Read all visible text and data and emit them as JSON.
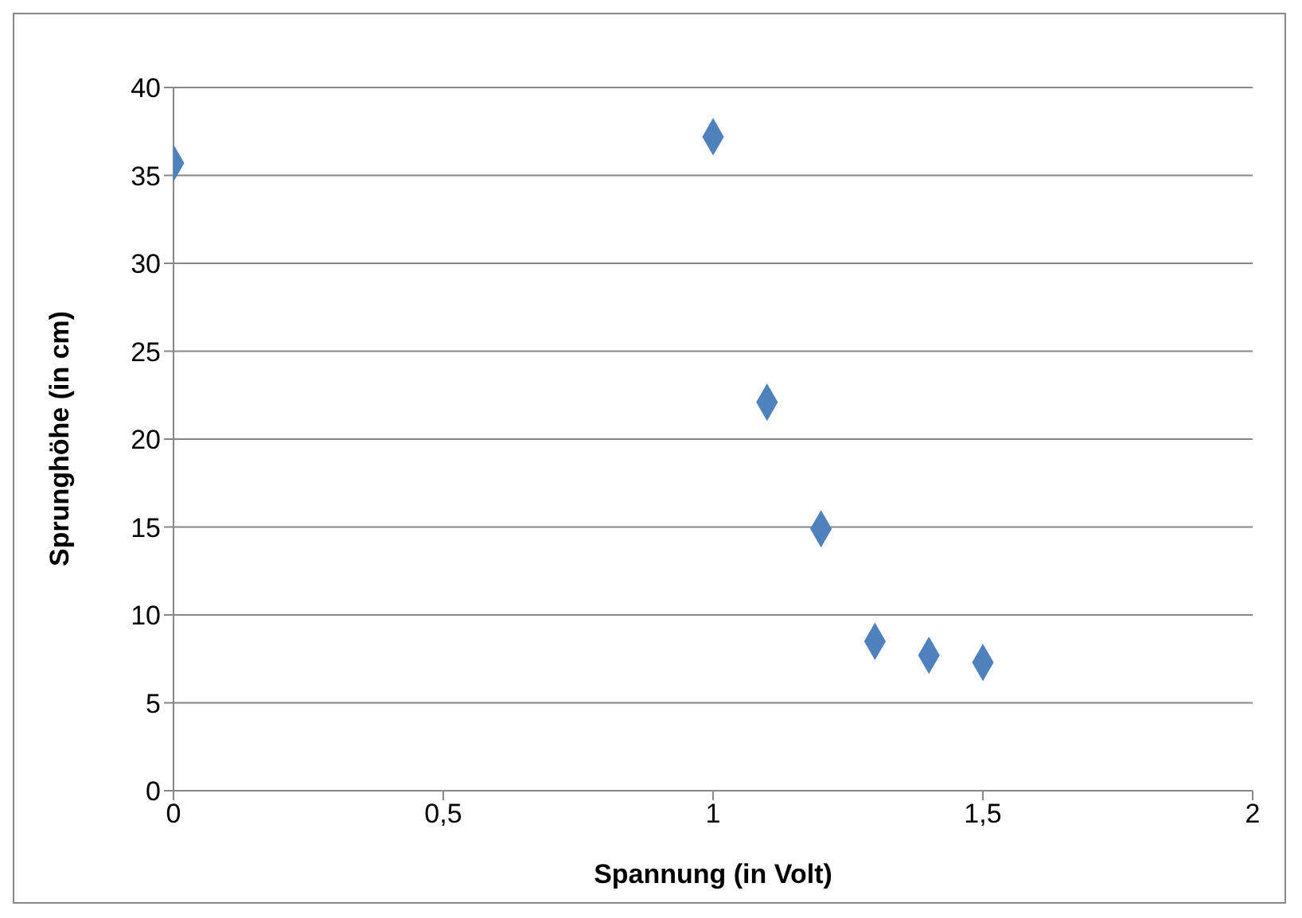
{
  "chart_data": {
    "type": "scatter",
    "xlabel": "Spannung (in Volt)",
    "ylabel": "Sprunghöhe (in cm)",
    "x": [
      0,
      1,
      1.1,
      1.2,
      1.3,
      1.4,
      1.5
    ],
    "values": [
      35.7,
      37.2,
      22.1,
      14.9,
      8.5,
      7.7,
      7.3
    ],
    "color": "#4f81bd",
    "marker": "diamond",
    "grid": "y",
    "legend": false,
    "xlim": [
      0,
      2
    ],
    "xticks": [
      0,
      {
        "value": 0.5,
        "label": "0,5"
      },
      1,
      {
        "value": 1.5,
        "label": "1,5"
      },
      2
    ],
    "ylim": [
      0,
      40
    ],
    "yticks": [
      0,
      5,
      10,
      15,
      20,
      25,
      30,
      35,
      40
    ]
  }
}
